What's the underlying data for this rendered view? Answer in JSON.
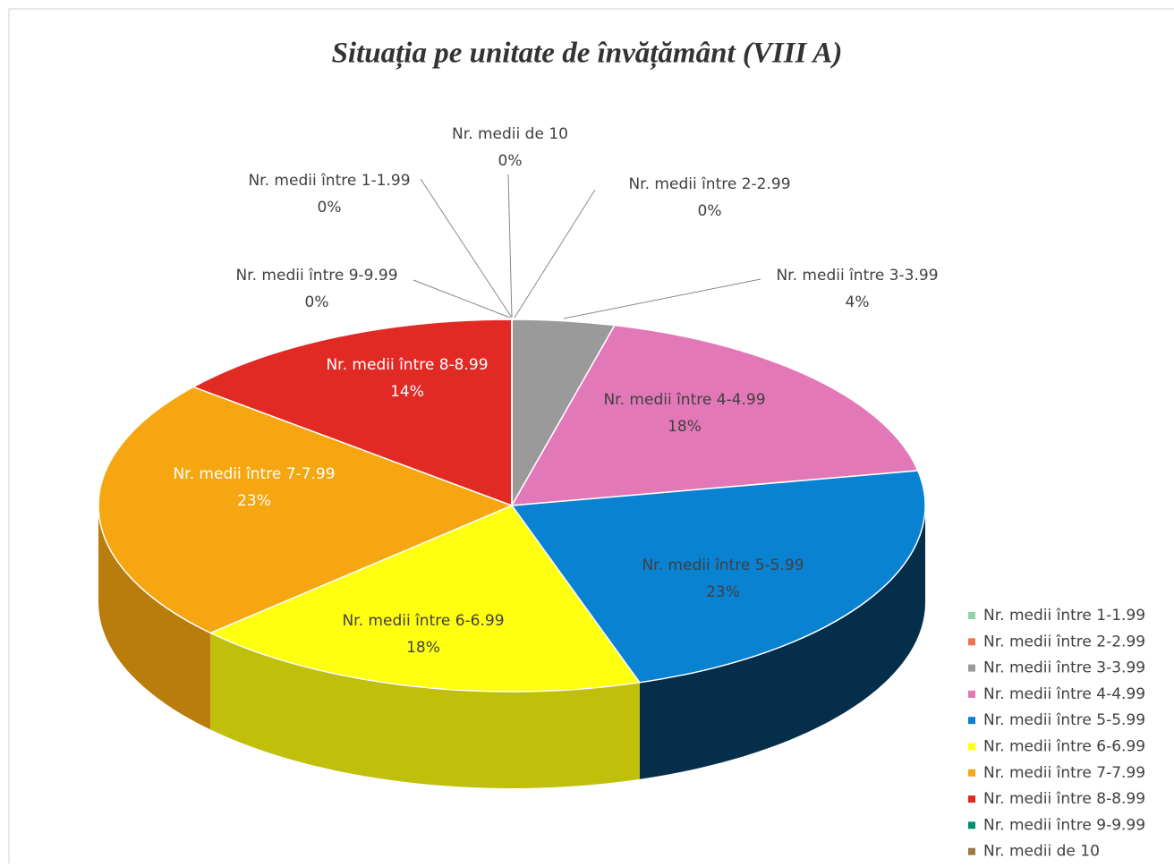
{
  "chart_data": {
    "type": "pie3d",
    "title": "Situația pe unitate de învățământ (VIII A)",
    "categories": [
      "Nr. medii între 1-1.99",
      "Nr. medii între 2-2.99",
      "Nr. medii între 3-3.99",
      "Nr. medii între 4-4.99",
      "Nr. medii între 5-5.99",
      "Nr. medii între 6-6.99",
      "Nr. medii între 7-7.99",
      "Nr. medii între 8-8.99",
      "Nr. medii între 9-9.99",
      "Nr. medii de 10"
    ],
    "values": [
      0,
      0,
      4,
      18,
      23,
      18,
      23,
      14,
      0,
      0
    ],
    "value_labels": [
      "0%",
      "0%",
      "4%",
      "18%",
      "23%",
      "18%",
      "23%",
      "14%",
      "0%",
      "0%"
    ],
    "colors": [
      "#8fd3a6",
      "#ef7550",
      "#9a9a9a",
      "#e378b8",
      "#0a82d2",
      "#ffff10",
      "#f5a610",
      "#e22a25",
      "#009070",
      "#9c7a44"
    ],
    "legend": "right"
  }
}
